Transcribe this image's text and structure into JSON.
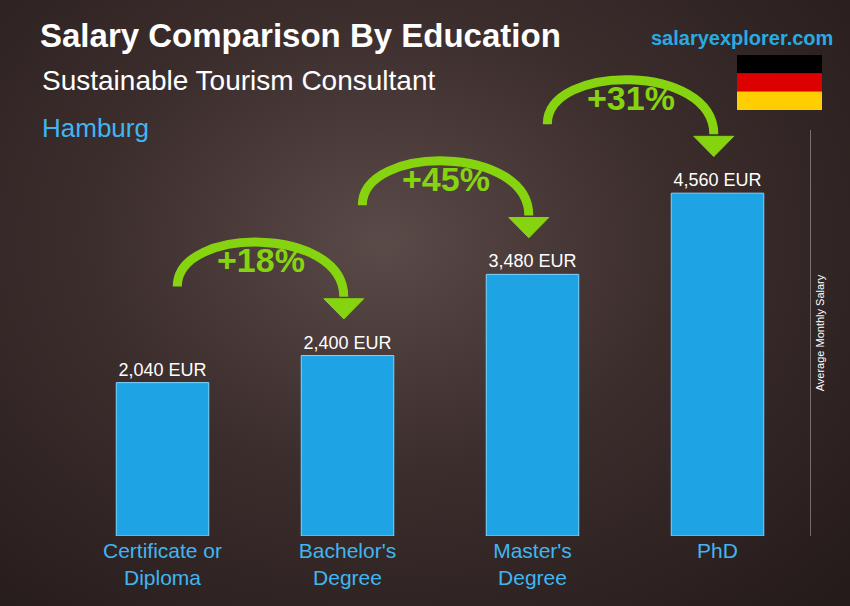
{
  "chart_data": {
    "type": "bar",
    "title": "Salary Comparison By Education",
    "subtitle": "Sustainable Tourism Consultant",
    "annotations": [
      "Hamburg",
      "salaryexplorer.com"
    ],
    "ylabel": "Average Monthly Salary",
    "categories": [
      "Certificate or Diploma",
      "Bachelor's Degree",
      "Master's Degree",
      "PhD"
    ],
    "values": [
      2040,
      2400,
      3480,
      4560
    ],
    "value_labels": [
      "2,040 EUR",
      "2,400 EUR",
      "3,480 EUR",
      "4,560 EUR"
    ],
    "changes": [
      {
        "from": "Certificate or Diploma",
        "to": "Bachelor's Degree",
        "value": 18,
        "label": "+18%"
      },
      {
        "from": "Bachelor's Degree",
        "to": "Master's Degree",
        "value": 45,
        "label": "+45%"
      },
      {
        "from": "Master's Degree",
        "to": "PhD",
        "value": 31,
        "label": "+31%"
      }
    ],
    "color": "#1ea4e4",
    "ylim": [
      0,
      5400
    ],
    "grid": false,
    "data_labels": true,
    "tick_labels": "x"
  }
}
